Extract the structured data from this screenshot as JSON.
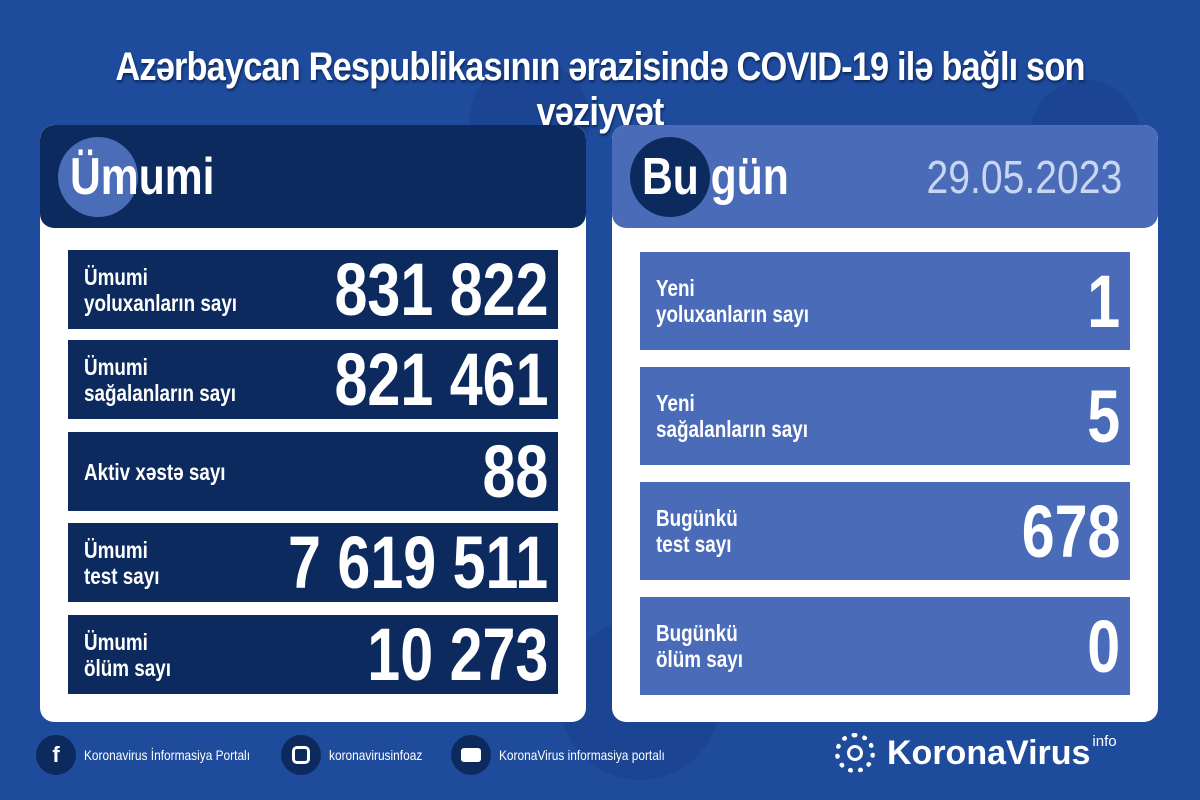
{
  "title": "Azərbaycan Respublikasının ərazisində COVID-19 ilə bağlı son vəziyyət",
  "total": {
    "heading": "Ümumi",
    "rows": [
      {
        "label": "Ümumi\nyoluxanların sayı",
        "value": "831 822"
      },
      {
        "label": "Ümumi\nsağalanların sayı",
        "value": "821 461"
      },
      {
        "label": "Aktiv xəstə sayı",
        "value": "88"
      },
      {
        "label": "Ümumi\ntest sayı",
        "value": "7 619 511"
      },
      {
        "label": "Ümumi\nölüm sayı",
        "value": "10 273"
      }
    ]
  },
  "today": {
    "heading": "Bu gün",
    "date": "29.05.2023",
    "rows": [
      {
        "label": "Yeni\nyoluxanların sayı",
        "value": "1"
      },
      {
        "label": "Yeni\nsağalanların sayı",
        "value": "5"
      },
      {
        "label": "Bugünkü\ntest sayı",
        "value": "678"
      },
      {
        "label": "Bugünkü\nölüm sayı",
        "value": "0"
      }
    ]
  },
  "footer": {
    "facebook": "Koronavirus İnformasiya Portalı",
    "instagram": "koronavirusinfoaz",
    "youtube": "KoronaVirus informasiya portalı"
  },
  "logo": {
    "text": "KoronaVirus",
    "sup": "info"
  },
  "colors": {
    "background": "#1e4b9c",
    "navy": "#0d2a5e",
    "today_blue": "#4a6cb8",
    "date": "#c9d6f2"
  }
}
